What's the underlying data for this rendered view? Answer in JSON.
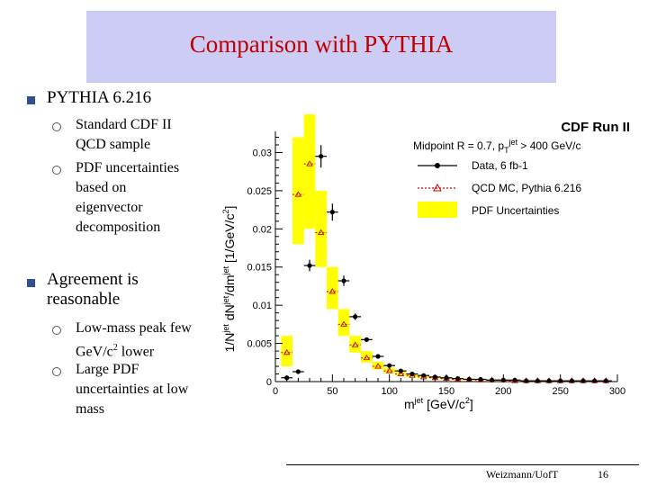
{
  "slide": {
    "title": "Comparison with PYTHIA",
    "bullets": [
      {
        "text": "PYTHIA 6.216",
        "subs": [
          "Standard CDF II QCD sample",
          "PDF uncertainties based on eigenvector decomposition"
        ]
      },
      {
        "text": "Agreement is reasonable",
        "subs": [
          "Low-mass peak few GeV/c2 lower",
          "Large PDF uncertainties at low mass"
        ]
      }
    ],
    "footer_left": "Weizmann/UofT",
    "footer_page": "16"
  },
  "chart_data": {
    "type": "scatter",
    "title": "CDF Run II",
    "annotation": "Midpoint R = 0.7, pT jet > 400 GeV/c",
    "xlabel": "m jet [GeV/c2]",
    "ylabel": "1/Njet dNjet/dmjet [1/GeV/c2]",
    "xlim": [
      0,
      300
    ],
    "ylim": [
      0,
      0.033
    ],
    "xticks": [
      "0",
      "50",
      "100",
      "150",
      "200",
      "250",
      "300"
    ],
    "yticks": [
      "0",
      "0.005",
      "0.01",
      "0.015",
      "0.02",
      "0.025",
      "0.03"
    ],
    "legend": [
      "Data, 6 fb-1",
      "QCD MC, Pythia 6.216",
      "PDF Uncertainties"
    ],
    "legend_position": "top-right",
    "bin_edges": [
      5,
      15,
      25,
      35,
      45,
      55,
      65,
      75,
      85,
      95,
      105,
      115,
      125,
      135,
      145,
      155,
      165,
      175,
      185,
      195,
      205,
      215,
      225,
      235,
      245,
      255,
      265,
      275,
      285,
      295
    ],
    "data": [
      0.0005,
      0.0013,
      0.0152,
      0.0295,
      0.0222,
      0.0132,
      0.0085,
      0.0055,
      0.0033,
      0.0021,
      0.0014,
      0.001,
      0.0008,
      0.0006,
      0.0005,
      0.0004,
      0.0003,
      0.0003,
      0.0002,
      0.0002,
      0.0002,
      0.0001,
      0.0001,
      0.0001,
      0.0001,
      0.0001,
      0.0001,
      0.0001,
      0.0001
    ],
    "mc": [
      0.0038,
      0.0245,
      0.0285,
      0.0195,
      0.0118,
      0.0075,
      0.0048,
      0.0031,
      0.002,
      0.0014,
      0.001,
      0.0008,
      0.0006,
      0.0005,
      0.0004,
      0.0003,
      0.0003,
      0.0002,
      0.0002,
      0.0002,
      0.0001,
      0.0001,
      0.0001,
      0.0001,
      0.0001,
      0.0001,
      0.0001,
      0.0001,
      0.0001
    ],
    "pdf_low": [
      0.002,
      0.018,
      0.02,
      0.015,
      0.0095,
      0.006,
      0.0038,
      0.0025,
      0.0016,
      0.0011,
      0.0008,
      0.0006,
      0.0005,
      0.0004,
      0.0003,
      0.0002,
      0.0002,
      0.0002,
      0.0001,
      0.0001,
      0.0001,
      0.0001,
      0.0001,
      0.0001,
      0.0,
      0.0,
      0.0,
      0.0,
      0.0
    ],
    "pdf_high": [
      0.006,
      0.032,
      0.035,
      0.025,
      0.015,
      0.0095,
      0.006,
      0.004,
      0.0026,
      0.0018,
      0.0013,
      0.001,
      0.0008,
      0.0006,
      0.0005,
      0.0004,
      0.0004,
      0.0003,
      0.0003,
      0.0002,
      0.0002,
      0.0002,
      0.0002,
      0.0001,
      0.0001,
      0.0001,
      0.0001,
      0.0001,
      0.0001
    ],
    "colors": {
      "data": "#000000",
      "mc": "#d00000",
      "pdf": "#ffff00"
    }
  }
}
